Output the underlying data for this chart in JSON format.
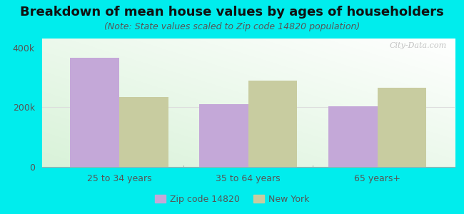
{
  "title": "Breakdown of mean house values by ages of householders",
  "subtitle": "(Note: State values scaled to Zip code 14820 population)",
  "categories": [
    "25 to 34 years",
    "35 to 64 years",
    "65 years+"
  ],
  "zip_values": [
    365000,
    210000,
    203000
  ],
  "ny_values": [
    235000,
    290000,
    265000
  ],
  "zip_color": "#c4a8d8",
  "ny_color": "#c8cca0",
  "background_color": "#00eded",
  "ylim": [
    0,
    430000
  ],
  "ytick_labels": [
    "0",
    "200k",
    "400k"
  ],
  "ytick_values": [
    0,
    200000,
    400000
  ],
  "legend_zip_label": "Zip code 14820",
  "legend_ny_label": "New York",
  "bar_width": 0.38,
  "title_fontsize": 13,
  "subtitle_fontsize": 9,
  "tick_fontsize": 9,
  "legend_fontsize": 9,
  "watermark": "City-Data.com",
  "tick_color": "#555555",
  "title_color": "#111111",
  "subtitle_color": "#555555"
}
